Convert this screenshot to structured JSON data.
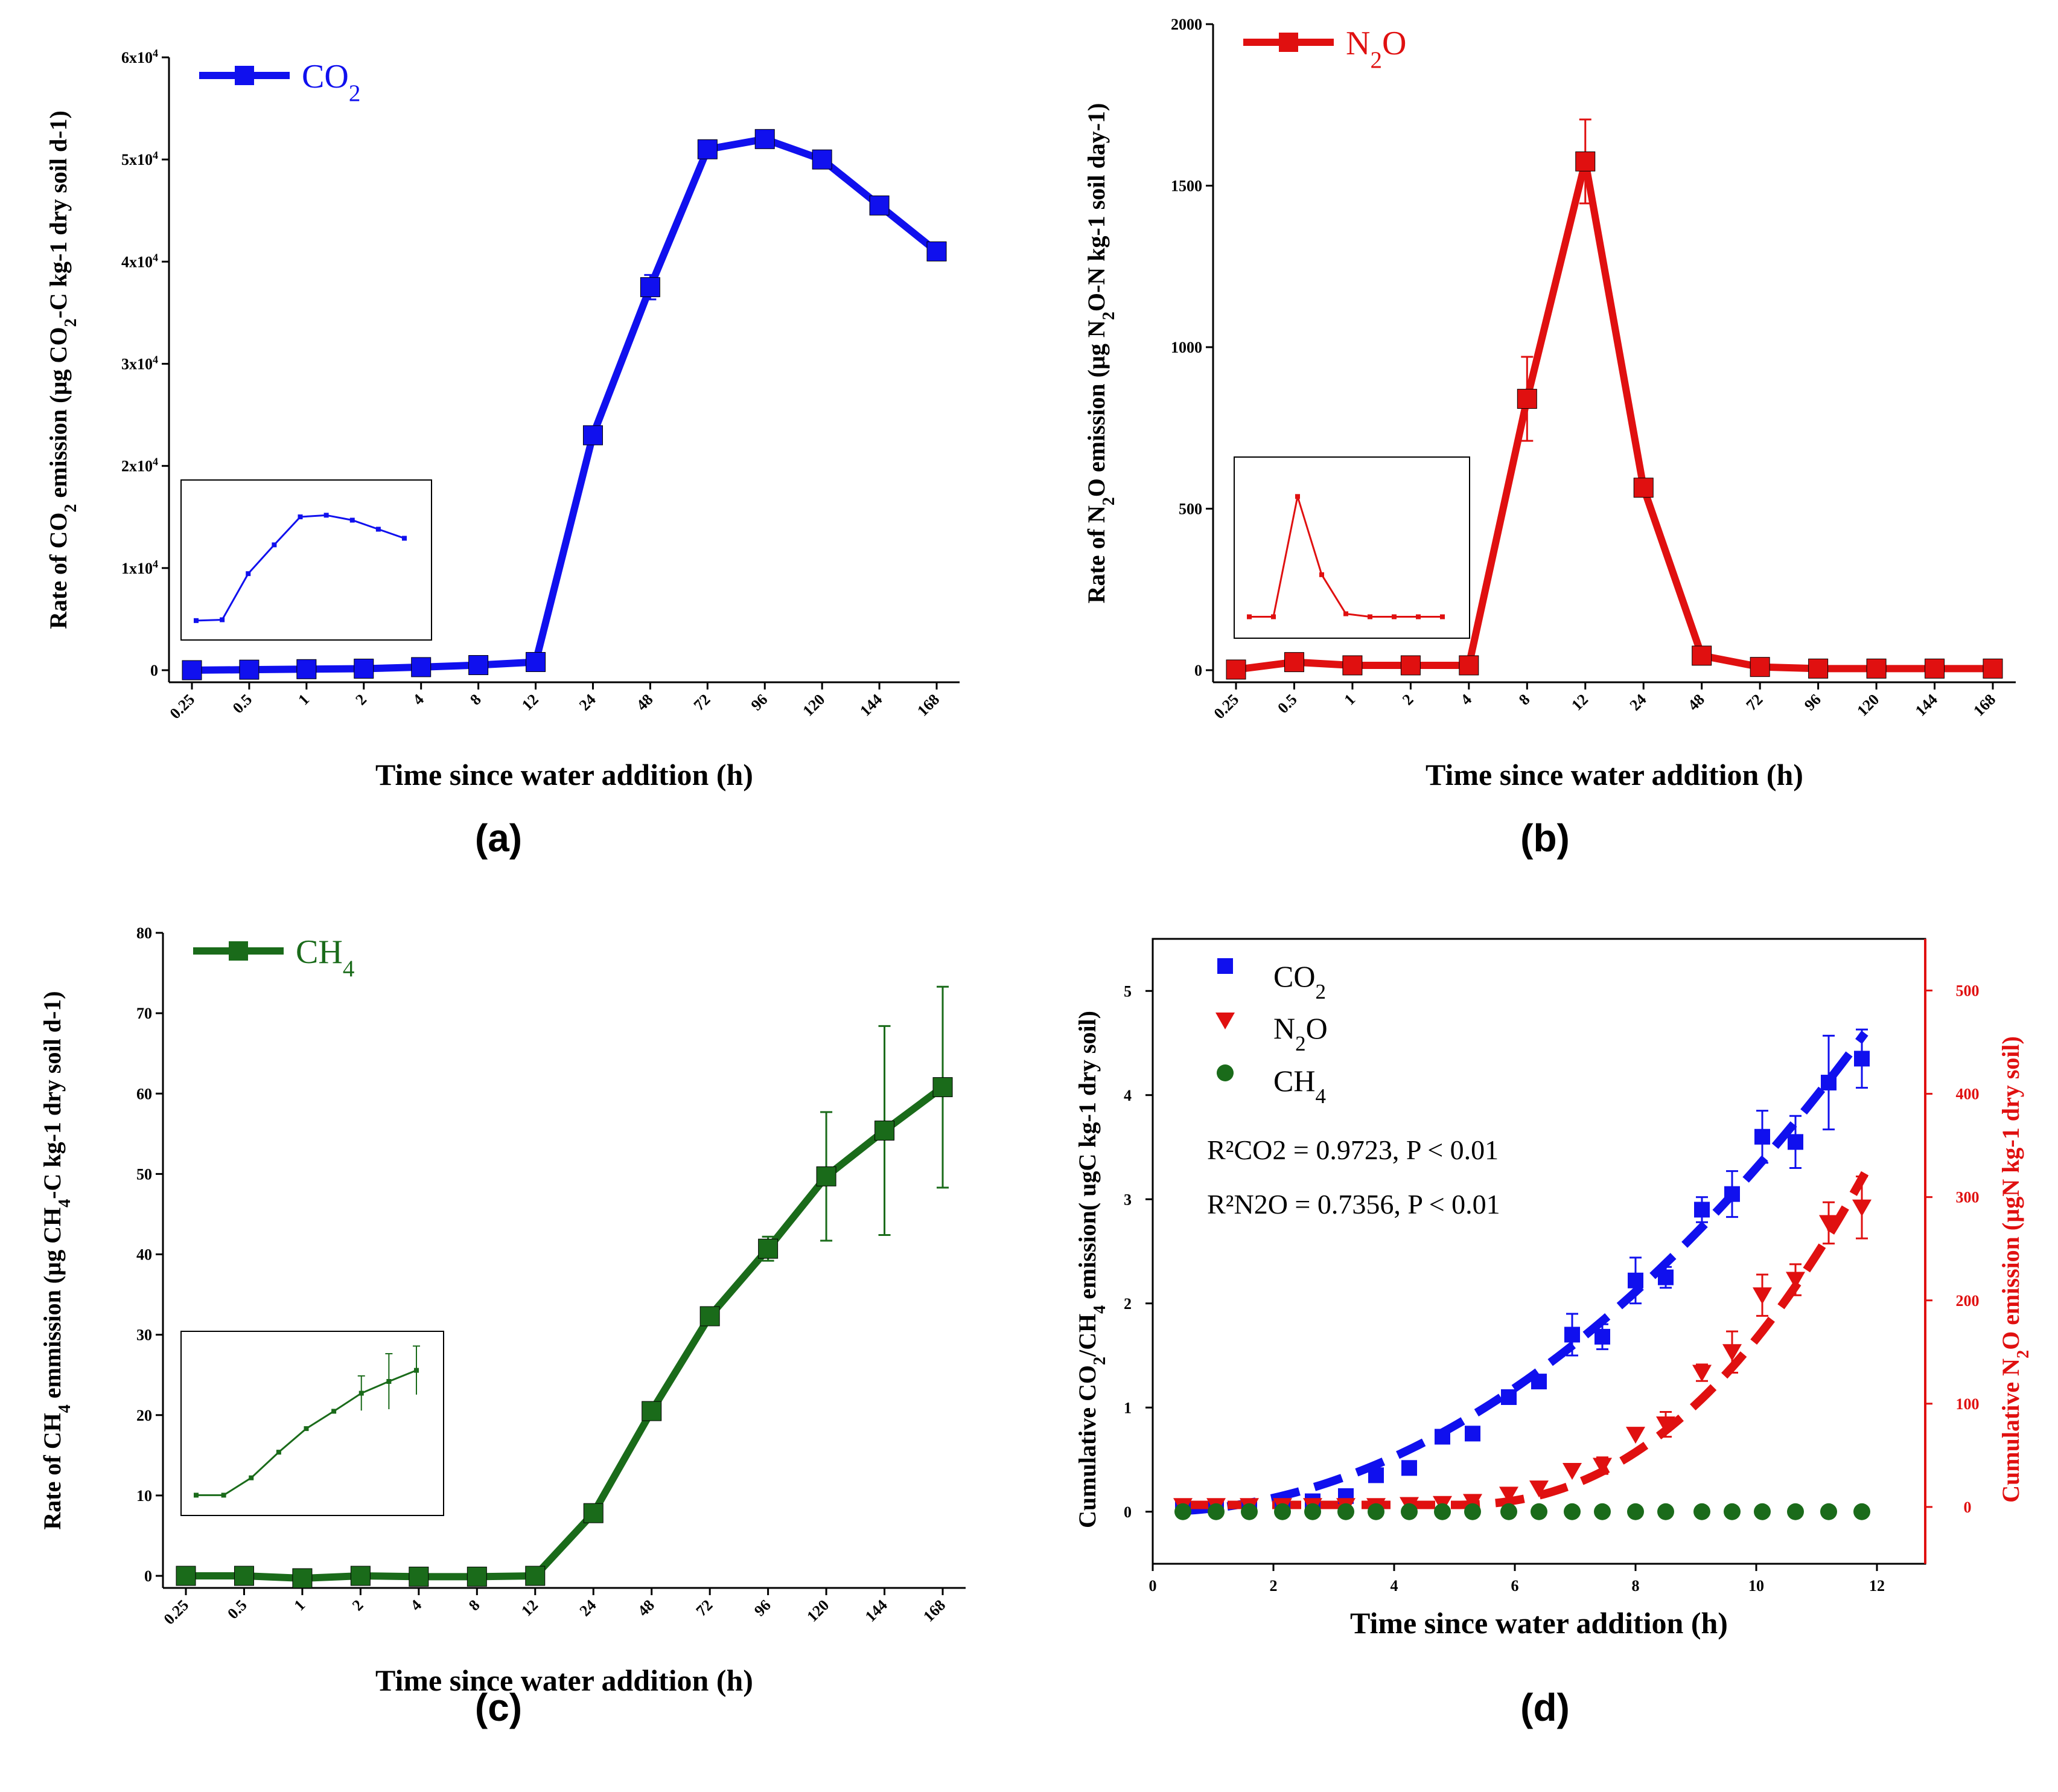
{
  "figure": {
    "panels": [
      "(a)",
      "(b)",
      "(c)",
      "(d)"
    ]
  },
  "chart_data": [
    {
      "id": "a",
      "type": "line",
      "color": "#1010ee",
      "legend_label": "CO2",
      "xlabel": "Time since water addition (h)",
      "ylabel": "Rate of CO2 emission (µg CO2-C kg-1 dry soil d-1)",
      "x_ticks": [
        "0.25",
        "0.5",
        "1",
        "2",
        "4",
        "8",
        "12",
        "24",
        "48",
        "72",
        "96",
        "120",
        "144",
        "168"
      ],
      "y_ticks": [
        "0",
        "1x10^4",
        "2x10^4",
        "3x10^4",
        "4x10^4",
        "5x10^4",
        "6x10^4"
      ],
      "ylim": [
        0,
        60000
      ],
      "series": [
        {
          "name": "CO2",
          "x": [
            0.25,
            0.5,
            1,
            2,
            4,
            8,
            12,
            24,
            48,
            72,
            96,
            120,
            144,
            168
          ],
          "values": [
            0,
            50,
            100,
            150,
            300,
            500,
            800,
            23000,
            37500,
            51000,
            52000,
            50000,
            45500,
            41000
          ],
          "errors": [
            0,
            0,
            0,
            0,
            0,
            0,
            0,
            0,
            1200,
            0,
            0,
            0,
            0,
            0
          ]
        }
      ],
      "inset": [
        3.5,
        3.6,
        9.2,
        12.7,
        16.1,
        16.3,
        15.7,
        14.6,
        13.5
      ]
    },
    {
      "id": "b",
      "type": "line",
      "color": "#e01010",
      "legend_label": "N2O",
      "xlabel": "Time since water addition (h)",
      "ylabel": "Rate of N2O emission (µg N2O-N kg-1 soil day-1)",
      "x_ticks": [
        "0.25",
        "0.5",
        "1",
        "2",
        "4",
        "8",
        "12",
        "24",
        "48",
        "72",
        "96",
        "120",
        "144",
        "168"
      ],
      "y_ticks": [
        "0",
        "500",
        "1000",
        "1500",
        "2000"
      ],
      "ylim": [
        0,
        2000
      ],
      "series": [
        {
          "name": "N2O",
          "x": [
            0.25,
            0.5,
            1,
            2,
            4,
            8,
            12,
            24,
            48,
            72,
            96,
            120,
            144,
            168
          ],
          "values": [
            2,
            25,
            15,
            15,
            15,
            840,
            1575,
            565,
            45,
            10,
            5,
            5,
            5,
            5
          ],
          "errors": [
            0,
            0,
            0,
            0,
            0,
            130,
            130,
            0,
            0,
            0,
            0,
            0,
            0,
            0
          ]
        }
      ],
      "inset": [
        140,
        140,
        540,
        280,
        150,
        140,
        140,
        140,
        140
      ]
    },
    {
      "id": "c",
      "type": "line",
      "color": "#1a6b1a",
      "legend_label": "CH4",
      "xlabel": "Time since water addition (h)",
      "ylabel": "Rate of CH4 emmission (µg CH4-C kg-1 dry soil d-1)",
      "x_ticks": [
        "0.25",
        "0.5",
        "1",
        "2",
        "4",
        "8",
        "12",
        "24",
        "48",
        "72",
        "96",
        "120",
        "144",
        "168"
      ],
      "y_ticks": [
        "0",
        "10",
        "20",
        "30",
        "40",
        "50",
        "60",
        "70",
        "80"
      ],
      "ylim": [
        0,
        80
      ],
      "series": [
        {
          "name": "CH4",
          "x": [
            0.25,
            0.5,
            1,
            2,
            4,
            8,
            12,
            24,
            48,
            72,
            96,
            120,
            144,
            168
          ],
          "values": [
            0,
            0,
            -0.3,
            0,
            -0.1,
            -0.1,
            0,
            7.8,
            20.5,
            32.3,
            40.7,
            49.7,
            55.4,
            60.8
          ],
          "errors": [
            0,
            0,
            0,
            0,
            0,
            0,
            0,
            0,
            0,
            0,
            1.5,
            8,
            13,
            12.5
          ]
        }
      ],
      "inset": [
        5,
        5,
        7.5,
        11.2,
        14.6,
        17.1,
        19.7,
        21.4,
        23
      ],
      "inset_err": [
        0,
        0,
        0,
        0,
        0,
        0,
        2.5,
        4,
        3.5
      ]
    },
    {
      "id": "d",
      "type": "scatter",
      "xlabel": "Time since water addition (h)",
      "ylabel_left": "Cumulative CO2/CH4 emission( ugC kg-1 dry soil)",
      "ylabel_right": "Cumulative N2O emission (µgN kg-1 dry soil)",
      "x_ticks": [
        "0",
        "2",
        "4",
        "6",
        "8",
        "10",
        "12"
      ],
      "y_ticks_left": [
        "0",
        "1",
        "2",
        "3",
        "4",
        "5"
      ],
      "y_ticks_right": [
        "0",
        "100",
        "200",
        "300",
        "400",
        "500"
      ],
      "xlim": [
        0,
        12.8
      ],
      "ylim_left": [
        -0.5,
        5.5
      ],
      "ylim_right": [
        -55,
        550
      ],
      "annotation_1": "R²CO2 = 0.9723, P < 0.01",
      "annotation_2": "R²N2O = 0.7356, P < 0.01",
      "legend": [
        "CO2",
        "N2O",
        "CH4"
      ],
      "x": [
        0.5,
        1.05,
        1.6,
        2.15,
        2.65,
        3.2,
        3.7,
        4.25,
        4.8,
        5.3,
        5.9,
        6.4,
        6.95,
        7.45,
        8.0,
        8.5,
        9.1,
        9.6,
        10.1,
        10.65,
        11.2,
        11.75
      ],
      "series": [
        {
          "name": "CO2",
          "axis": "left",
          "color": "#1010ee",
          "values": [
            0.05,
            0.05,
            0.05,
            0.05,
            0.1,
            0.15,
            0.35,
            0.42,
            0.72,
            0.75,
            1.1,
            1.25,
            1.7,
            1.68,
            2.22,
            2.25,
            2.9,
            3.05,
            3.6,
            3.55,
            4.12,
            4.35
          ],
          "errors": [
            0,
            0,
            0,
            0,
            0,
            0,
            0,
            0,
            0,
            0,
            0,
            0.05,
            0.2,
            0.12,
            0.22,
            0.1,
            0.12,
            0.22,
            0.25,
            0.25,
            0.45,
            0.28
          ]
        },
        {
          "name": "N2O",
          "axis": "right",
          "color": "#e01010",
          "values": [
            1,
            1,
            1,
            1,
            1,
            1,
            1,
            2,
            3,
            5,
            12,
            18,
            35,
            40,
            70,
            80,
            130,
            150,
            205,
            220,
            275,
            290
          ],
          "errors": [
            0,
            0,
            0,
            0,
            0,
            0,
            0,
            0,
            0,
            0,
            0,
            0,
            0,
            8,
            0,
            12,
            8,
            20,
            20,
            15,
            20,
            30
          ]
        },
        {
          "name": "CH4",
          "axis": "left",
          "color": "#1a6b1a",
          "values": [
            0,
            0,
            0,
            0,
            0,
            0,
            0,
            0,
            0,
            0,
            0,
            0,
            0,
            0,
            0,
            0,
            0,
            0,
            0,
            0,
            0,
            0
          ],
          "errors": []
        }
      ],
      "fits": [
        {
          "name": "CO2 fit",
          "axis": "left",
          "color": "#1010ee",
          "a": 0.0012,
          "b": 0.8,
          "c": 0.0
        },
        {
          "name": "N2O fit",
          "axis": "right",
          "color": "#e01010",
          "a": 0.006,
          "b": 0.9,
          "c": 0.0
        }
      ]
    }
  ]
}
